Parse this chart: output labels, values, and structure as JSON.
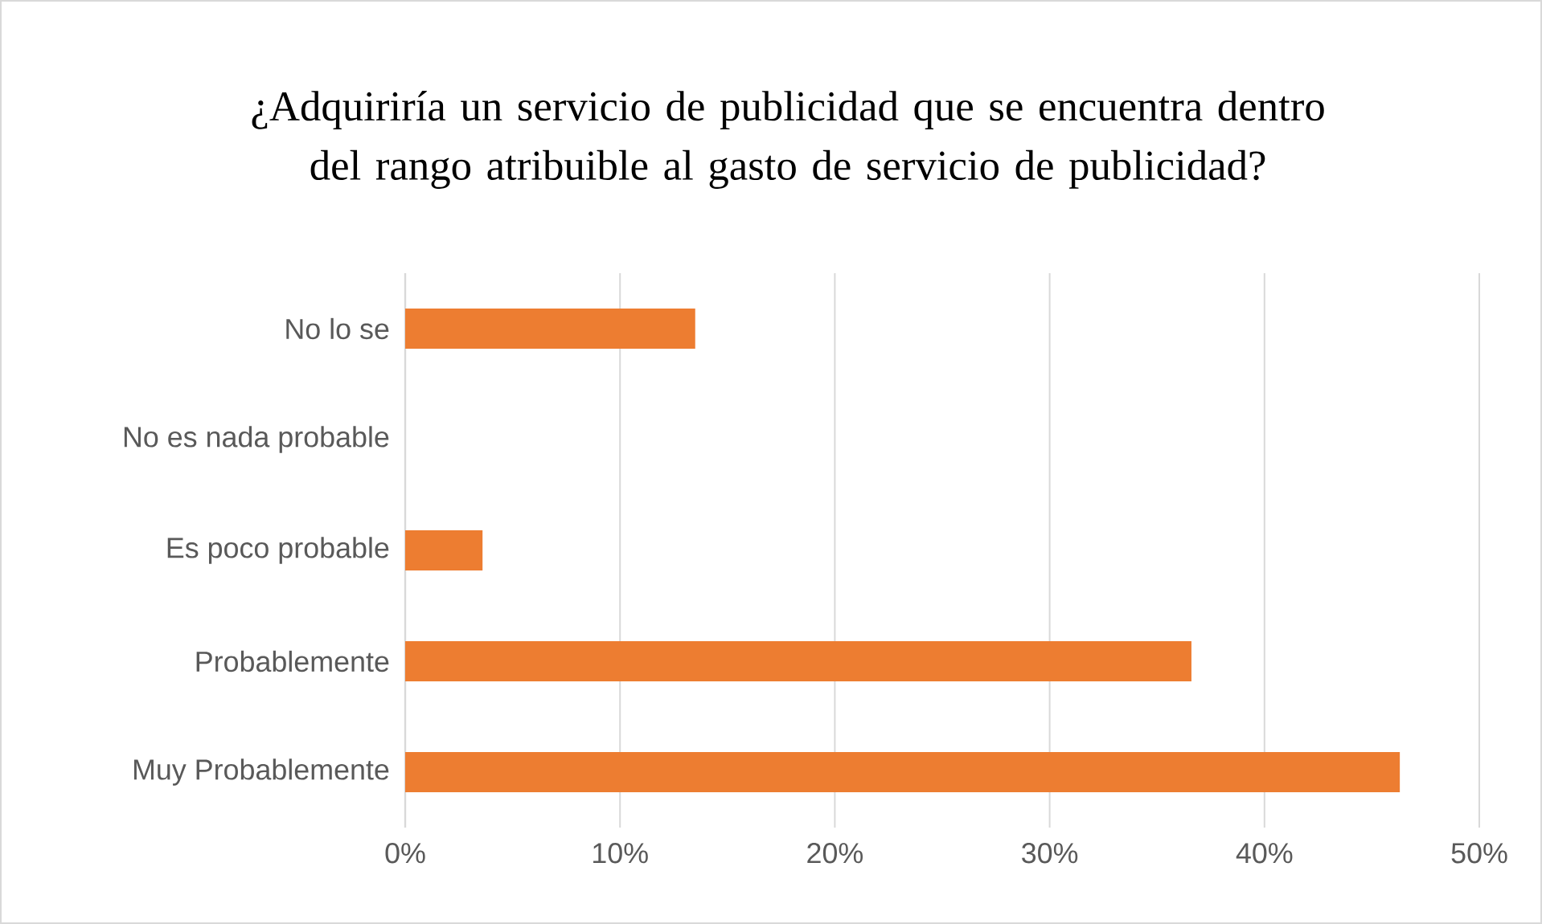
{
  "chart_data": {
    "type": "bar",
    "orientation": "horizontal",
    "title": "¿Adquiriría un servicio de publicidad que se encuentra dentro del rango atribuible al gasto de servicio de publicidad?",
    "categories": [
      "No lo se",
      "No es nada probable",
      "Es poco probable",
      "Probablemente",
      "Muy Probablemente"
    ],
    "values": [
      13.5,
      0,
      3.6,
      36.6,
      46.3
    ],
    "color": "#ed7d31",
    "xlim": [
      0,
      50
    ],
    "xticks": [
      {
        "value": 0,
        "label": "0%"
      },
      {
        "value": 10,
        "label": "10%"
      },
      {
        "value": 20,
        "label": "20%"
      },
      {
        "value": 30,
        "label": "30%"
      },
      {
        "value": 40,
        "label": "40%"
      },
      {
        "value": 50,
        "label": "50%"
      }
    ],
    "grid": "x"
  }
}
